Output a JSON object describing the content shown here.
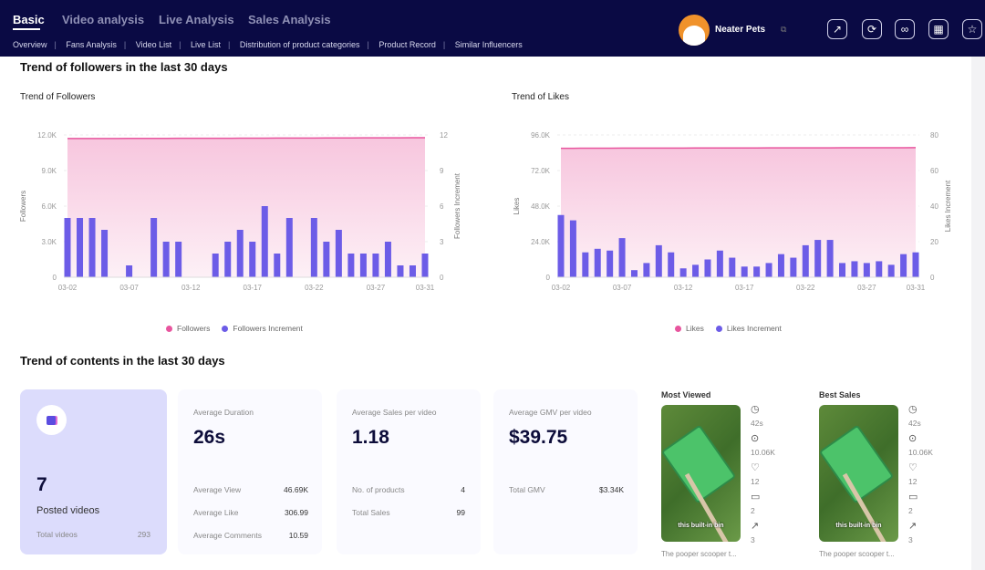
{
  "header": {
    "tabs": [
      "Basic",
      "Video analysis",
      "Live Analysis",
      "Sales Analysis"
    ],
    "subnav": [
      "Overview",
      "Fans Analysis",
      "Video List",
      "Live List",
      "Distribution of product categories",
      "Product Record",
      "Similar Influencers"
    ],
    "account_name": "Neater Pets",
    "icons": [
      "share-icon",
      "refresh-icon",
      "link-icon",
      "grid-icon",
      "star-icon"
    ]
  },
  "partial_section_title": "Trend of followers in the last 30 days",
  "colors": {
    "header": "#0a0a44",
    "bar": "#6c5ce7",
    "line": "#e8559e",
    "area": "#fbd3e6"
  },
  "chart_data": [
    {
      "type": "bar+area",
      "title": "Trend of Followers",
      "ylabel": "Followers",
      "y2label": "Followers Increment",
      "ylim": [
        0,
        12000
      ],
      "y2lim": [
        0,
        12
      ],
      "yticks": [
        "0",
        "3.0K",
        "6.0K",
        "9.0K",
        "12.0K"
      ],
      "y2ticks": [
        "0",
        "3",
        "6",
        "9",
        "12"
      ],
      "xticks": [
        "03-02",
        "03-07",
        "03-12",
        "03-17",
        "03-22",
        "03-27",
        "03-31"
      ],
      "x": [
        "03-02",
        "03-03",
        "03-04",
        "03-05",
        "03-06",
        "03-07",
        "03-08",
        "03-09",
        "03-10",
        "03-11",
        "03-12",
        "03-13",
        "03-14",
        "03-15",
        "03-16",
        "03-17",
        "03-18",
        "03-19",
        "03-20",
        "03-21",
        "03-22",
        "03-23",
        "03-24",
        "03-25",
        "03-26",
        "03-27",
        "03-28",
        "03-29",
        "03-30",
        "03-31"
      ],
      "series": [
        {
          "name": "Followers",
          "type": "area",
          "values": [
            11700,
            11700,
            11700,
            11700,
            11700,
            11710,
            11710,
            11710,
            11710,
            11720,
            11720,
            11720,
            11720,
            11720,
            11730,
            11730,
            11730,
            11740,
            11740,
            11740,
            11740,
            11750,
            11750,
            11750,
            11760,
            11760,
            11760,
            11760,
            11770,
            11770
          ]
        },
        {
          "name": "Followers Increment",
          "type": "bar",
          "values": [
            5,
            5,
            5,
            4,
            0,
            1,
            0,
            5,
            3,
            3,
            0,
            0,
            2,
            3,
            4,
            3,
            6,
            2,
            5,
            0,
            5,
            3,
            4,
            2,
            2,
            2,
            3,
            1,
            1,
            2
          ]
        }
      ],
      "legend": "bottom"
    },
    {
      "type": "bar+area",
      "title": "Trend of Likes",
      "ylabel": "Likes",
      "y2label": "Likes Increment",
      "ylim": [
        0,
        96000
      ],
      "y2lim": [
        0,
        80
      ],
      "yticks": [
        "0",
        "24.0K",
        "48.0K",
        "72.0K",
        "96.0K"
      ],
      "y2ticks": [
        "0",
        "20",
        "40",
        "60",
        "80"
      ],
      "xticks": [
        "03-02",
        "03-07",
        "03-12",
        "03-17",
        "03-22",
        "03-27",
        "03-31"
      ],
      "x": [
        "03-02",
        "03-03",
        "03-04",
        "03-05",
        "03-06",
        "03-07",
        "03-08",
        "03-09",
        "03-10",
        "03-11",
        "03-12",
        "03-13",
        "03-14",
        "03-15",
        "03-16",
        "03-17",
        "03-18",
        "03-19",
        "03-20",
        "03-21",
        "03-22",
        "03-23",
        "03-24",
        "03-25",
        "03-26",
        "03-27",
        "03-28",
        "03-29",
        "03-30",
        "03-31"
      ],
      "series": [
        {
          "name": "Likes",
          "type": "area",
          "values": [
            87000,
            87030,
            87060,
            87080,
            87100,
            87120,
            87140,
            87150,
            87160,
            87180,
            87190,
            87200,
            87210,
            87220,
            87240,
            87250,
            87260,
            87270,
            87280,
            87290,
            87300,
            87320,
            87340,
            87360,
            87370,
            87380,
            87390,
            87400,
            87410,
            87430
          ]
        },
        {
          "name": "Likes Increment",
          "type": "bar",
          "values": [
            35,
            32,
            14,
            16,
            15,
            22,
            4,
            8,
            18,
            14,
            5,
            7,
            10,
            15,
            11,
            6,
            6,
            8,
            13,
            11,
            18,
            21,
            21,
            8,
            9,
            8,
            9,
            7,
            13,
            14
          ]
        }
      ],
      "legend": "bottom"
    }
  ],
  "contents": {
    "title": "Trend of contents in the last 30 days",
    "posted": {
      "value": "7",
      "label": "Posted videos",
      "total_label": "Total videos",
      "total_value": "293"
    },
    "duration": {
      "label": "Average Duration",
      "value": "26s",
      "rows": [
        [
          "Average View",
          "46.69K"
        ],
        [
          "Average Like",
          "306.99"
        ],
        [
          "Average Comments",
          "10.59"
        ]
      ]
    },
    "sales": {
      "label": "Average Sales per video",
      "value": "1.18",
      "rows": [
        [
          "No. of products",
          "4"
        ],
        [
          "Total Sales",
          "99"
        ]
      ]
    },
    "gmv": {
      "label": "Average GMV per video",
      "value": "$39.75",
      "rows": [
        [
          "Total GMV",
          "$3.34K"
        ]
      ]
    },
    "videos": [
      {
        "heading": "Most Viewed",
        "caption": "this built-in bin",
        "title": "The pooper scooper t...",
        "stats": [
          "42s",
          "10.06K",
          "12",
          "2",
          "3"
        ]
      },
      {
        "heading": "Best Sales",
        "caption": "this built-in bin",
        "title": "The pooper scooper t...",
        "stats": [
          "42s",
          "10.06K",
          "12",
          "2",
          "3"
        ]
      }
    ]
  }
}
